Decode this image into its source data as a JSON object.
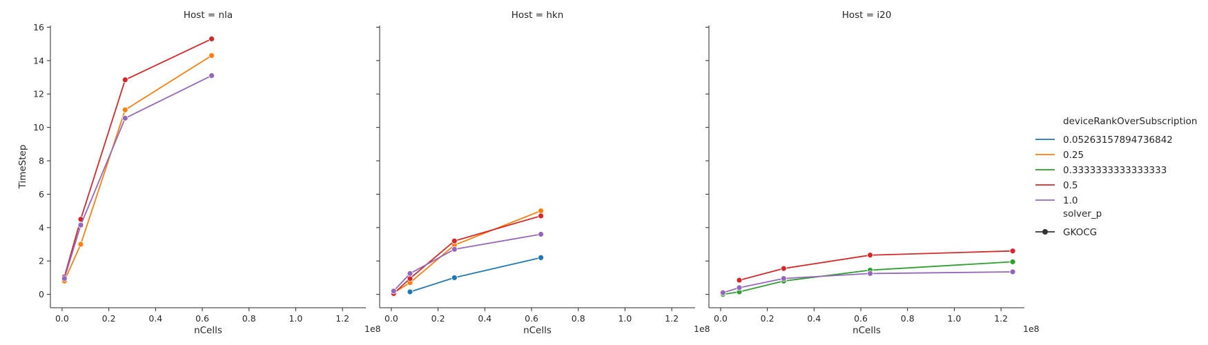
{
  "chart_data": {
    "type": "line",
    "xlabel": "nCells",
    "ylabel": "TimeStep",
    "x_offset_label": "1e8",
    "xlim": [
      -5000000,
      130000000
    ],
    "ylim": [
      -0.8,
      16.1
    ],
    "x_ticks": [
      0,
      20000000,
      40000000,
      60000000,
      80000000,
      100000000,
      120000000
    ],
    "x_tick_labels": [
      "0.0",
      "0.2",
      "0.4",
      "0.6",
      "0.8",
      "1.0",
      "1.2"
    ],
    "y_ticks": [
      0,
      2,
      4,
      6,
      8,
      10,
      12,
      14,
      16
    ],
    "y_tick_labels": [
      "0",
      "2",
      "4",
      "6",
      "8",
      "10",
      "12",
      "14",
      "16"
    ],
    "grid": false,
    "legend": {
      "placement": "right",
      "hue_title": "deviceRankOverSubscription",
      "hue_entries": [
        {
          "label": "0.05263157894736842",
          "color": "#1f77b4"
        },
        {
          "label": "0.25",
          "color": "#ff7f0e"
        },
        {
          "label": "0.3333333333333333",
          "color": "#2ca02c"
        },
        {
          "label": "0.5",
          "color": "#d62728"
        },
        {
          "label": "1.0",
          "color": "#9467bd"
        }
      ],
      "style_title": "solver_p",
      "style_entries": [
        {
          "label": "GKOCG",
          "color": "#333333"
        }
      ]
    },
    "panels": [
      {
        "title": "Host = nla",
        "series": [
          {
            "name": "0.25",
            "color": "#ff7f0e",
            "x": [
              1000000,
              8000000,
              27000000,
              64000000
            ],
            "y": [
              0.8,
              3.0,
              11.05,
              14.3
            ]
          },
          {
            "name": "0.5",
            "color": "#d62728",
            "x": [
              1000000,
              8000000,
              27000000,
              64000000
            ],
            "y": [
              1.05,
              4.5,
              12.85,
              15.3
            ]
          },
          {
            "name": "1.0",
            "color": "#9467bd",
            "x": [
              1000000,
              8000000,
              27000000,
              64000000
            ],
            "y": [
              0.95,
              4.15,
              10.55,
              13.1
            ]
          }
        ]
      },
      {
        "title": "Host = hkn",
        "series": [
          {
            "name": "0.05263157894736842",
            "color": "#1f77b4",
            "x": [
              8000000,
              27000000,
              64000000
            ],
            "y": [
              0.15,
              1.0,
              2.2
            ]
          },
          {
            "name": "0.25",
            "color": "#ff7f0e",
            "x": [
              1000000,
              8000000,
              27000000,
              64000000
            ],
            "y": [
              0.1,
              0.7,
              2.95,
              5.0
            ]
          },
          {
            "name": "0.5",
            "color": "#d62728",
            "x": [
              1000000,
              8000000,
              27000000,
              64000000
            ],
            "y": [
              0.05,
              0.95,
              3.2,
              4.7
            ]
          },
          {
            "name": "1.0",
            "color": "#9467bd",
            "x": [
              1000000,
              8000000,
              27000000,
              64000000
            ],
            "y": [
              0.2,
              1.25,
              2.7,
              3.6
            ]
          }
        ]
      },
      {
        "title": "Host = i20",
        "series": [
          {
            "name": "0.3333333333333333",
            "color": "#2ca02c",
            "x": [
              1000000,
              8000000,
              27000000,
              64000000,
              125000000
            ],
            "y": [
              0.0,
              0.15,
              0.8,
              1.45,
              1.95
            ]
          },
          {
            "name": "0.5",
            "color": "#d62728",
            "x": [
              8000000,
              27000000,
              64000000,
              125000000
            ],
            "y": [
              0.85,
              1.55,
              2.35,
              2.6
            ]
          },
          {
            "name": "1.0",
            "color": "#9467bd",
            "x": [
              1000000,
              8000000,
              27000000,
              64000000,
              125000000
            ],
            "y": [
              0.1,
              0.4,
              0.95,
              1.25,
              1.35
            ]
          }
        ]
      }
    ]
  }
}
